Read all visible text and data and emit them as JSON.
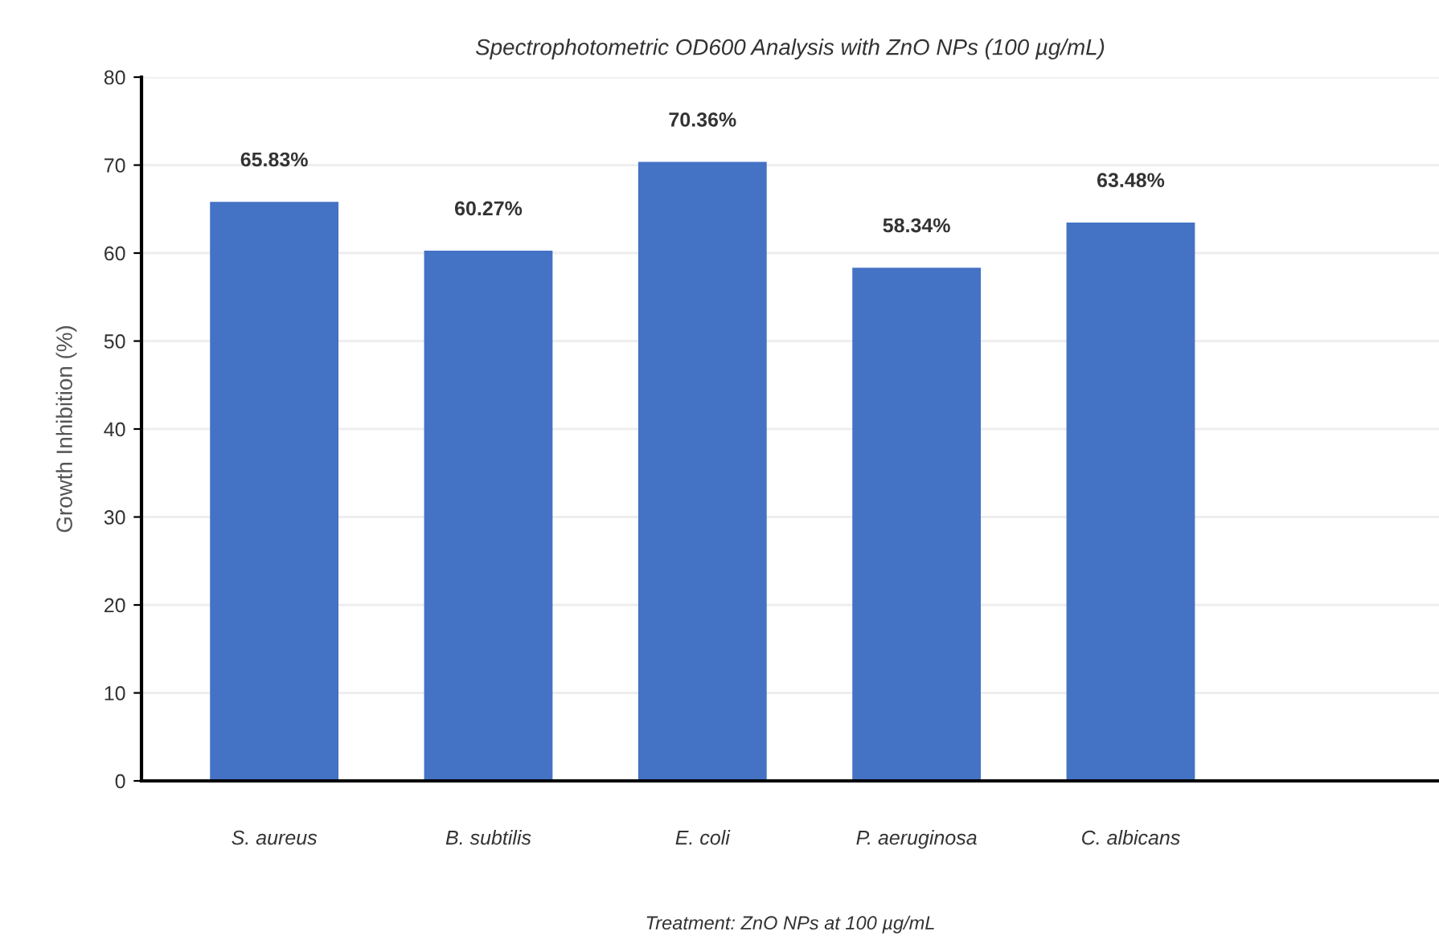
{
  "chart_data": {
    "type": "bar",
    "title": "Spectrophotometric OD600 Analysis with ZnO NPs (100 µg/mL)",
    "xlabel": "Treatment: ZnO NPs at 100 µg/mL",
    "ylabel": "Growth Inhibition (%)",
    "categories": [
      "S. aureus",
      "B. subtilis",
      "E. coli",
      "P. aeruginosa",
      "C. albicans"
    ],
    "values": [
      65.83,
      60.27,
      70.36,
      58.34,
      63.48
    ],
    "value_labels": [
      "65.83%",
      "60.27%",
      "70.36%",
      "58.34%",
      "63.48%"
    ],
    "color": "#4472c4",
    "ylim": [
      0,
      80
    ],
    "yticks": [
      0,
      10,
      20,
      30,
      40,
      50,
      60,
      70,
      80
    ],
    "grid": "y",
    "legend": false
  }
}
